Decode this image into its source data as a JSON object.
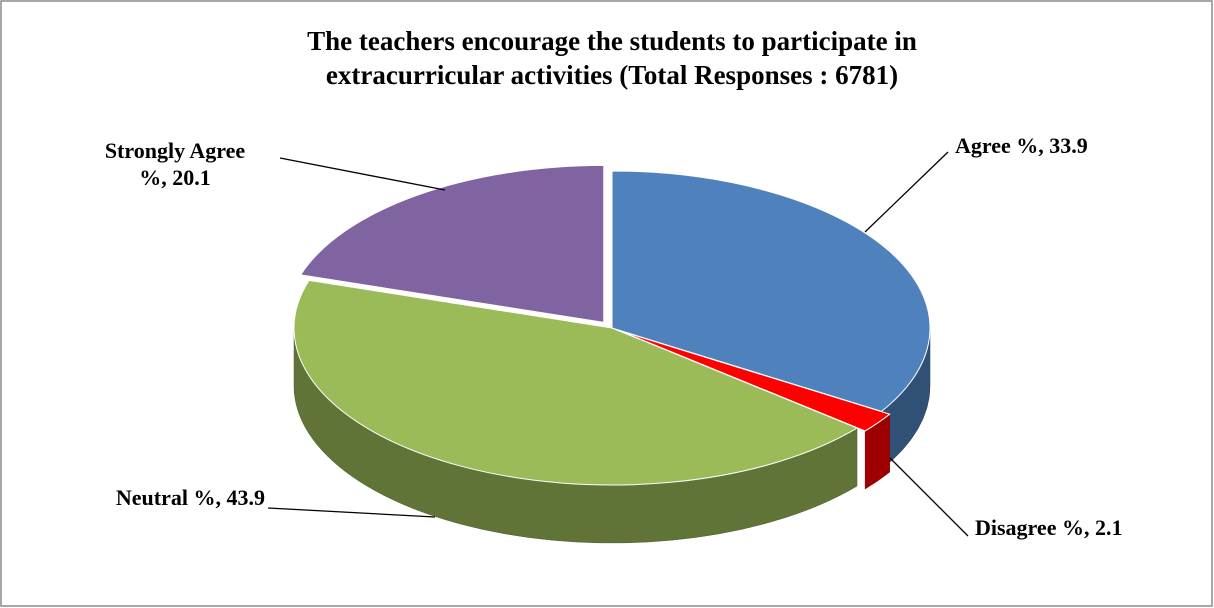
{
  "chart_data": {
    "type": "pie3d",
    "title": "The teachers encourage the students to participate in extracurricular activities (Total Responses : 6781)",
    "values": [
      33.9,
      2.1,
      43.9,
      20.1
    ],
    "value_labels": [
      "Agree %, 33.9",
      "Disagree %, 2.1",
      "Neutral %, 43.9",
      "Strongly Agree %, 20.1"
    ],
    "colors": [
      "#4f81bd",
      "#ff0000",
      "#9bbb59",
      "#8064a2"
    ]
  }
}
